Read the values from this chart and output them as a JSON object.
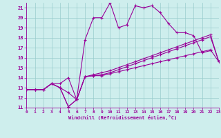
{
  "xlabel": "Windchill (Refroidissement éolien,°C)",
  "xlim": [
    0,
    23
  ],
  "ylim": [
    11,
    21.5
  ],
  "xticks": [
    0,
    1,
    2,
    3,
    4,
    5,
    6,
    7,
    8,
    9,
    10,
    11,
    12,
    13,
    14,
    15,
    16,
    17,
    18,
    19,
    20,
    21,
    22,
    23
  ],
  "yticks": [
    11,
    12,
    13,
    14,
    15,
    16,
    17,
    18,
    19,
    20,
    21
  ],
  "bg_color": "#ceeeed",
  "line_color": "#990099",
  "grid_color": "#99cccc",
  "series": [
    {
      "x": [
        0,
        1,
        2,
        3,
        4,
        5,
        6,
        7,
        8,
        9,
        10,
        11,
        12,
        13,
        14,
        15,
        16,
        17,
        18,
        19,
        20,
        21,
        22
      ],
      "y": [
        12.8,
        12.8,
        12.8,
        13.4,
        13.4,
        14.0,
        11.8,
        17.8,
        20.0,
        20.0,
        21.5,
        19.0,
        19.3,
        21.2,
        21.0,
        21.2,
        20.5,
        19.4,
        18.5,
        18.5,
        18.2,
        16.5,
        16.7
      ]
    },
    {
      "x": [
        0,
        1,
        2,
        3,
        4,
        5,
        6,
        7,
        8,
        9,
        10,
        11,
        12,
        13,
        14,
        15,
        16,
        17,
        18,
        19,
        20,
        21,
        22,
        23
      ],
      "y": [
        12.8,
        12.8,
        12.8,
        13.4,
        13.0,
        11.1,
        11.8,
        14.1,
        14.2,
        14.2,
        14.4,
        14.6,
        14.8,
        15.0,
        15.2,
        15.4,
        15.6,
        15.8,
        16.0,
        16.2,
        16.4,
        16.6,
        16.8,
        15.6
      ]
    },
    {
      "x": [
        0,
        1,
        2,
        3,
        4,
        5,
        6,
        7,
        8,
        9,
        10,
        11,
        12,
        13,
        14,
        15,
        16,
        17,
        18,
        19,
        20,
        21,
        22,
        23
      ],
      "y": [
        12.8,
        12.8,
        12.8,
        13.4,
        13.0,
        11.1,
        11.8,
        14.1,
        14.2,
        14.3,
        14.5,
        14.8,
        15.1,
        15.4,
        15.7,
        16.0,
        16.3,
        16.6,
        16.9,
        17.2,
        17.5,
        17.8,
        18.1,
        15.6
      ]
    },
    {
      "x": [
        0,
        1,
        2,
        3,
        4,
        5,
        6,
        7,
        8,
        9,
        10,
        11,
        12,
        13,
        14,
        15,
        16,
        17,
        18,
        19,
        20,
        21,
        22,
        23
      ],
      "y": [
        12.8,
        12.8,
        12.8,
        13.4,
        13.0,
        12.5,
        11.8,
        14.1,
        14.3,
        14.5,
        14.7,
        15.0,
        15.3,
        15.6,
        15.9,
        16.2,
        16.5,
        16.8,
        17.1,
        17.4,
        17.7,
        18.0,
        18.3,
        15.6
      ]
    }
  ]
}
